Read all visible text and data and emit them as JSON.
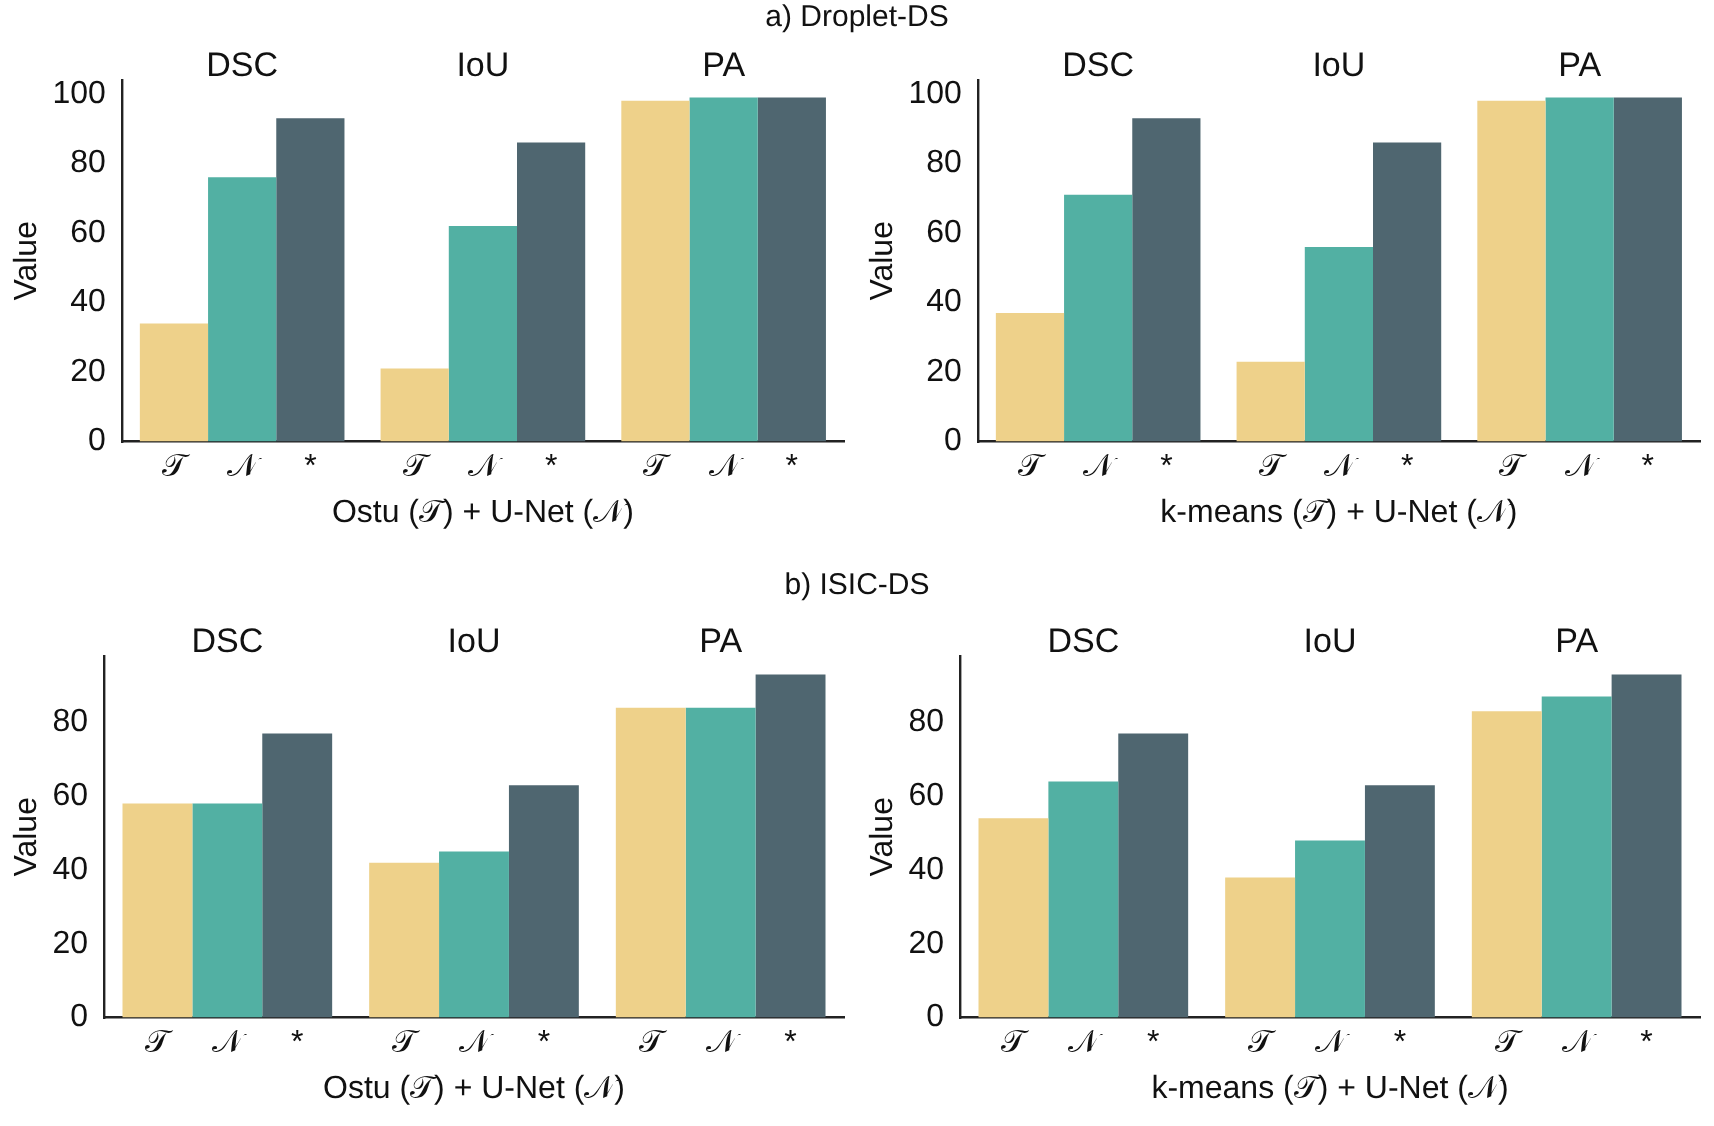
{
  "chart_data": [
    {
      "type": "bar",
      "title": "a) Droplet-DS",
      "categories": [
        "DSC",
        "IoU",
        "PA"
      ],
      "xlabel": "Ostu (𝒯) + U-Net (𝒩)",
      "ylabel": "Value",
      "ylim": [
        0,
        104
      ],
      "yticks": [
        0,
        20,
        40,
        60,
        80,
        100
      ],
      "grid": false,
      "legend": false,
      "series": [
        {
          "name": "𝒯",
          "color": "#eed18a",
          "values": [
            34,
            21,
            98
          ]
        },
        {
          "name": "𝒩",
          "color": "#52b0a3",
          "values": [
            76,
            62,
            99
          ]
        },
        {
          "name": "*",
          "color": "#4f6670",
          "values": [
            93,
            86,
            99
          ]
        }
      ]
    },
    {
      "type": "bar",
      "categories": [
        "DSC",
        "IoU",
        "PA"
      ],
      "xlabel": "k-means (𝒯) + U-Net (𝒩)",
      "ylabel": "Value",
      "ylim": [
        0,
        104
      ],
      "yticks": [
        0,
        20,
        40,
        60,
        80,
        100
      ],
      "grid": false,
      "legend": false,
      "series": [
        {
          "name": "𝒯",
          "color": "#eed18a",
          "values": [
            37,
            23,
            98
          ]
        },
        {
          "name": "𝒩",
          "color": "#52b0a3",
          "values": [
            71,
            56,
            99
          ]
        },
        {
          "name": "*",
          "color": "#4f6670",
          "values": [
            93,
            86,
            99
          ]
        }
      ]
    },
    {
      "type": "bar",
      "title": "b) ISIC-DS",
      "categories": [
        "DSC",
        "IoU",
        "PA"
      ],
      "xlabel": "Ostu (𝒯) + U-Net (𝒩)",
      "ylabel": "Value",
      "ylim": [
        0,
        98
      ],
      "yticks": [
        0,
        20,
        40,
        60,
        80
      ],
      "grid": false,
      "legend": false,
      "series": [
        {
          "name": "𝒯",
          "color": "#eed18a",
          "values": [
            58,
            42,
            84
          ]
        },
        {
          "name": "𝒩",
          "color": "#52b0a3",
          "values": [
            58,
            45,
            84
          ]
        },
        {
          "name": "*",
          "color": "#4f6670",
          "values": [
            77,
            63,
            93
          ]
        }
      ]
    },
    {
      "type": "bar",
      "categories": [
        "DSC",
        "IoU",
        "PA"
      ],
      "xlabel": "k-means (𝒯) + U-Net (𝒩)",
      "ylabel": "Value",
      "ylim": [
        0,
        98
      ],
      "yticks": [
        0,
        20,
        40,
        60,
        80
      ],
      "grid": false,
      "legend": false,
      "series": [
        {
          "name": "𝒯",
          "color": "#eed18a",
          "values": [
            54,
            38,
            83
          ]
        },
        {
          "name": "𝒩",
          "color": "#52b0a3",
          "values": [
            64,
            48,
            87
          ]
        },
        {
          "name": "*",
          "color": "#4f6670",
          "values": [
            77,
            63,
            93
          ]
        }
      ]
    }
  ]
}
